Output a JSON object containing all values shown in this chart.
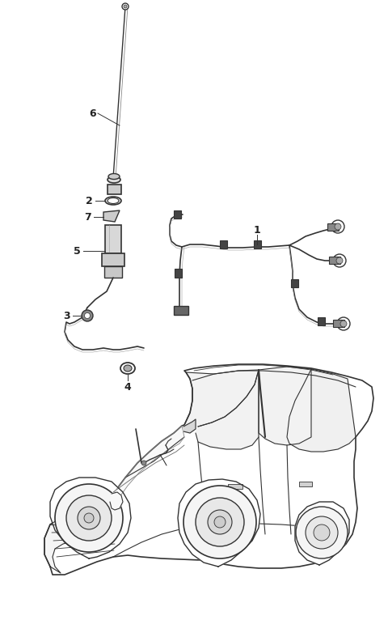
{
  "bg_color": "#ffffff",
  "line_color": "#333333",
  "label_color": "#222222",
  "figsize": [
    4.8,
    7.87
  ],
  "dpi": 100,
  "lw_cable": 1.2,
  "lw_body": 1.0,
  "lw_thin": 0.6
}
